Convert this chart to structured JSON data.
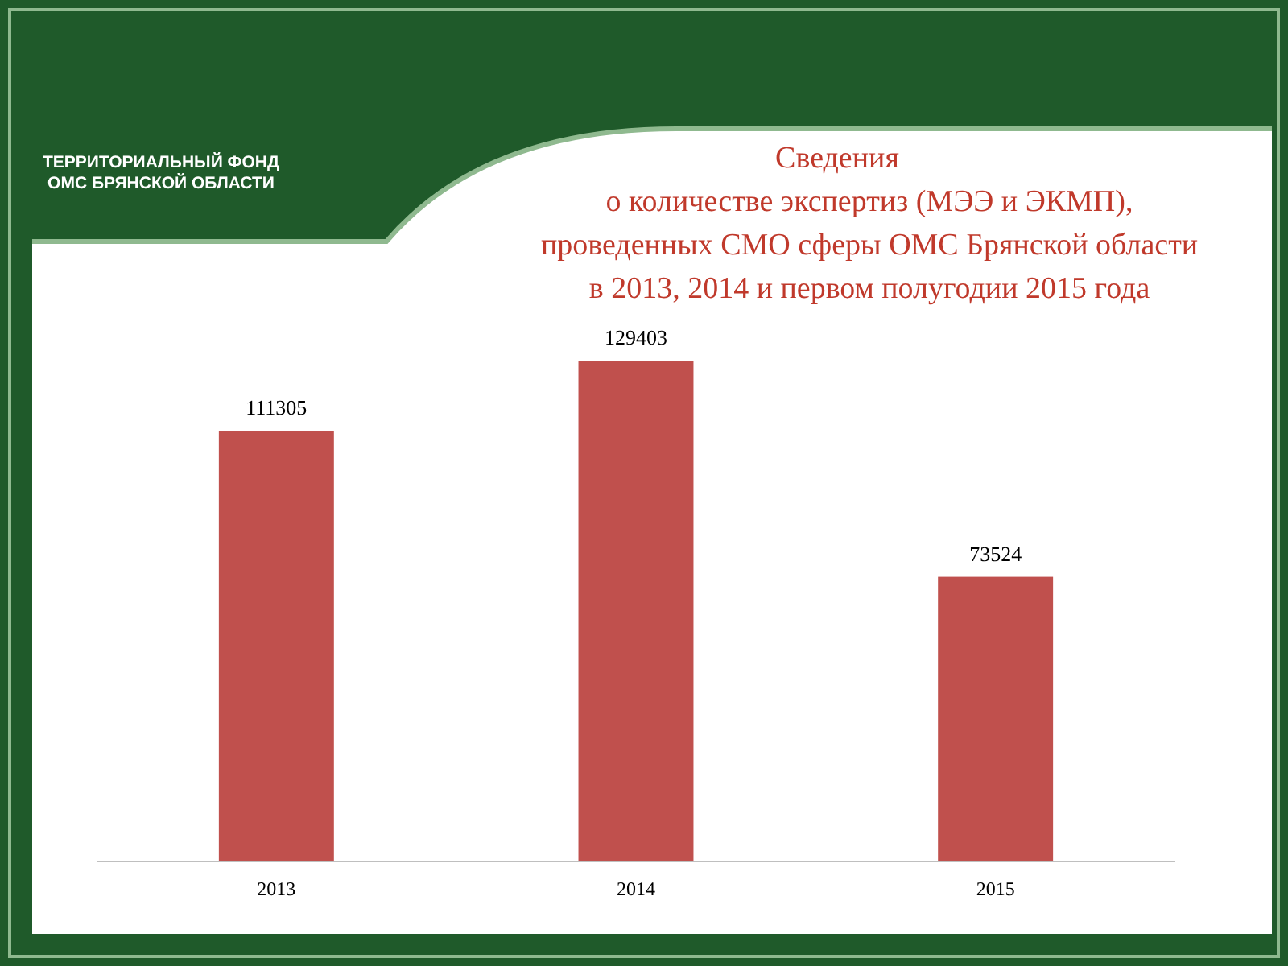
{
  "chart_data": {
    "type": "bar",
    "title": "Сведения\nо количестве экспертиз (МЭЭ и ЭКМП),\nпроведенных СМО сферы ОМС Брянской области\nв 2013, 2014 и первом полугодии 2015 года",
    "categories": [
      "2013",
      "2014",
      "2015"
    ],
    "values": [
      111305,
      129403,
      73524
    ],
    "color": "#c0504d",
    "data_labels": true,
    "annotations": [
      "ТЕРРИТОРИАЛЬНЫЙ ФОНД\nОМС БРЯНСКОЙ ОБЛАСТИ"
    ]
  }
}
